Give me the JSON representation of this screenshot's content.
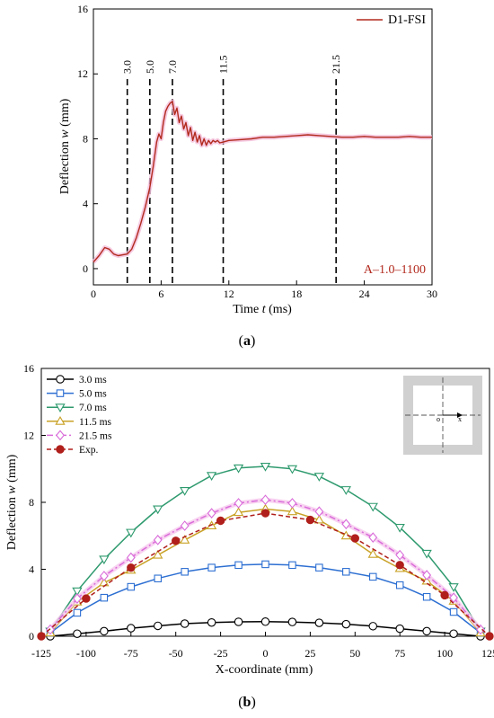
{
  "chart_data": [
    {
      "type": "line",
      "panel_label": "(a)",
      "panel_letter": "a",
      "xlabel": "Time t (ms)",
      "xlabel_parts": [
        "Time ",
        "t",
        " (ms)"
      ],
      "ylabel": "Deflection w (mm)",
      "ylabel_parts": [
        "Deflection ",
        "w",
        " (mm)"
      ],
      "xlim": [
        0,
        30
      ],
      "ylim": [
        -1,
        16
      ],
      "xticks": [
        "0",
        "6",
        "12",
        "18",
        "24",
        "30"
      ],
      "yticks": [
        "0",
        "4",
        "8",
        "12",
        "16"
      ],
      "annotation": "A–1.0–1100",
      "legend": {
        "position": "top-right",
        "entries": [
          "D1-FSI"
        ]
      },
      "vlines": [
        {
          "x": 3.0,
          "label": "3.0"
        },
        {
          "x": 5.0,
          "label": "5.0"
        },
        {
          "x": 7.0,
          "label": "7.0"
        },
        {
          "x": 11.5,
          "label": "11.5"
        },
        {
          "x": 21.5,
          "label": "21.5"
        }
      ],
      "series": [
        {
          "name": "D1-FSI",
          "color": "#b22a1e",
          "x": [
            0,
            0.5,
            1.0,
            1.4,
            1.8,
            2.2,
            2.6,
            3.0,
            3.4,
            3.8,
            4.2,
            4.6,
            5.0,
            5.3,
            5.6,
            5.8,
            6.0,
            6.2,
            6.4,
            6.6,
            6.8,
            7.0,
            7.2,
            7.4,
            7.6,
            7.8,
            8.0,
            8.2,
            8.4,
            8.6,
            8.8,
            9.0,
            9.2,
            9.4,
            9.6,
            9.8,
            10.0,
            10.2,
            10.4,
            10.6,
            10.8,
            11.0,
            11.2,
            11.5,
            12,
            13,
            14,
            15,
            16,
            17,
            18,
            19,
            20,
            21,
            22,
            23,
            24,
            25,
            26,
            27,
            28,
            29,
            30
          ],
          "y": [
            0.4,
            0.8,
            1.3,
            1.2,
            0.9,
            0.8,
            0.85,
            0.9,
            1.2,
            1.9,
            2.8,
            3.8,
            5.0,
            6.3,
            7.8,
            8.3,
            8.0,
            9.0,
            9.7,
            10.0,
            10.2,
            10.3,
            9.5,
            9.9,
            9.0,
            9.4,
            8.6,
            9.0,
            8.2,
            8.7,
            7.9,
            8.4,
            7.8,
            8.2,
            7.6,
            8.0,
            7.6,
            7.9,
            7.7,
            7.9,
            7.8,
            7.9,
            7.75,
            7.8,
            7.9,
            7.95,
            8.0,
            8.1,
            8.1,
            8.15,
            8.2,
            8.25,
            8.2,
            8.15,
            8.1,
            8.1,
            8.15,
            8.1,
            8.1,
            8.1,
            8.15,
            8.1,
            8.1
          ]
        }
      ]
    },
    {
      "type": "line",
      "panel_label": "(b)",
      "panel_letter": "b",
      "xlabel": "X-coordinate (mm)",
      "ylabel": "Deflection w (mm)",
      "ylabel_parts": [
        "Deflection ",
        "w",
        " (mm)"
      ],
      "xlim": [
        -125,
        125
      ],
      "ylim": [
        0,
        16
      ],
      "xticks": [
        "-125",
        "-100",
        "-75",
        "-50",
        "-25",
        "0",
        "25",
        "50",
        "75",
        "100",
        "125"
      ],
      "xtick_values": [
        -125,
        -100,
        -75,
        -50,
        -25,
        0,
        25,
        50,
        75,
        100,
        125
      ],
      "yticks": [
        "0",
        "4",
        "8",
        "12",
        "16"
      ],
      "legend": {
        "position": "top-left"
      },
      "inset": {
        "position": "top-right",
        "axis_label": "x",
        "origin_label": "o"
      },
      "series": [
        {
          "name": "3.0 ms",
          "color": "#000000",
          "marker": "circle",
          "dash": "solid",
          "x": [
            -120,
            -105,
            -90,
            -75,
            -60,
            -45,
            -30,
            -15,
            0,
            15,
            30,
            45,
            60,
            75,
            90,
            105,
            120
          ],
          "y": [
            0,
            0.15,
            0.3,
            0.48,
            0.62,
            0.75,
            0.82,
            0.86,
            0.87,
            0.85,
            0.8,
            0.72,
            0.6,
            0.45,
            0.3,
            0.15,
            0
          ]
        },
        {
          "name": "5.0 ms",
          "color": "#2d6fd2",
          "marker": "square",
          "dash": "solid",
          "x": [
            -120,
            -105,
            -90,
            -75,
            -60,
            -45,
            -30,
            -15,
            0,
            15,
            30,
            45,
            60,
            75,
            90,
            105,
            120
          ],
          "y": [
            0.2,
            1.4,
            2.3,
            2.95,
            3.45,
            3.85,
            4.1,
            4.25,
            4.3,
            4.25,
            4.1,
            3.85,
            3.55,
            3.05,
            2.35,
            1.45,
            0.2
          ]
        },
        {
          "name": "7.0 ms",
          "color": "#2e9a6e",
          "marker": "triangle-down",
          "dash": "solid",
          "x": [
            -120,
            -105,
            -90,
            -75,
            -60,
            -45,
            -30,
            -15,
            0,
            15,
            30,
            45,
            60,
            75,
            90,
            105,
            120
          ],
          "y": [
            0.3,
            2.7,
            4.6,
            6.2,
            7.6,
            8.7,
            9.6,
            10.05,
            10.15,
            10.0,
            9.55,
            8.75,
            7.75,
            6.5,
            4.95,
            2.95,
            0.3
          ]
        },
        {
          "name": "11.5 ms",
          "color": "#c9a227",
          "marker": "triangle-up",
          "dash": "solid",
          "x": [
            -120,
            -105,
            -90,
            -75,
            -60,
            -45,
            -30,
            -15,
            0,
            15,
            30,
            45,
            60,
            75,
            90,
            105,
            120
          ],
          "y": [
            0.2,
            2.05,
            3.2,
            3.95,
            4.85,
            5.75,
            6.6,
            7.4,
            7.6,
            7.45,
            6.95,
            6.0,
            4.9,
            4.05,
            3.3,
            2.1,
            0.2
          ]
        },
        {
          "name": "21.5 ms",
          "color": "#d96bd9",
          "marker": "diamond",
          "dash": "dashdot",
          "x": [
            -120,
            -105,
            -90,
            -75,
            -60,
            -45,
            -30,
            -15,
            0,
            15,
            30,
            45,
            60,
            75,
            90,
            105,
            120
          ],
          "y": [
            0.4,
            2.25,
            3.6,
            4.7,
            5.75,
            6.6,
            7.35,
            7.95,
            8.15,
            7.95,
            7.45,
            6.7,
            5.9,
            4.85,
            3.65,
            2.3,
            0.4
          ]
        },
        {
          "name": "Exp.",
          "color": "#b01f1b",
          "marker": "filled-circle",
          "dash": "dash",
          "x": [
            -125,
            -100,
            -75,
            -50,
            -25,
            0,
            25,
            50,
            75,
            100,
            125
          ],
          "y": [
            0,
            2.25,
            4.1,
            5.7,
            6.9,
            7.35,
            6.95,
            5.85,
            4.25,
            2.45,
            0
          ]
        }
      ]
    }
  ]
}
